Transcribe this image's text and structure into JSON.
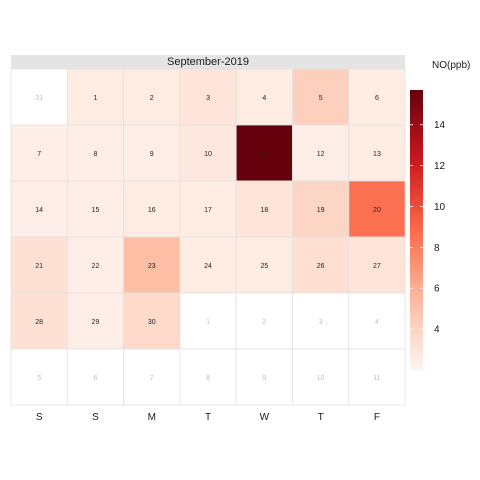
{
  "chart_data": {
    "type": "heatmap",
    "title": "",
    "panel_title": "September-2019",
    "legend_title": "NO(ppb)",
    "weekday_labels": [
      "S",
      "S",
      "M",
      "T",
      "W",
      "T",
      "F"
    ],
    "color_scale": {
      "low": "#fff5f0",
      "high": "#67000d",
      "min": 2,
      "max": 15.7,
      "ticks": [
        4,
        6,
        8,
        10,
        12,
        14
      ]
    },
    "grid": [
      [
        {
          "day": 31,
          "in_month": false,
          "value": null
        },
        {
          "day": 1,
          "in_month": true,
          "value": 2.6
        },
        {
          "day": 2,
          "in_month": true,
          "value": 2.6
        },
        {
          "day": 3,
          "in_month": true,
          "value": 3.0
        },
        {
          "day": 4,
          "in_month": true,
          "value": 2.6
        },
        {
          "day": 5,
          "in_month": true,
          "value": 4.2
        },
        {
          "day": 6,
          "in_month": true,
          "value": 2.5
        }
      ],
      [
        {
          "day": 7,
          "in_month": true,
          "value": 2.4
        },
        {
          "day": 8,
          "in_month": true,
          "value": 2.4
        },
        {
          "day": 9,
          "in_month": true,
          "value": 2.4
        },
        {
          "day": 10,
          "in_month": true,
          "value": 2.8
        },
        {
          "day": 11,
          "in_month": true,
          "value": 15.7
        },
        {
          "day": 12,
          "in_month": true,
          "value": 2.4
        },
        {
          "day": 13,
          "in_month": true,
          "value": 2.6
        }
      ],
      [
        {
          "day": 14,
          "in_month": true,
          "value": 2.4
        },
        {
          "day": 15,
          "in_month": true,
          "value": 2.4
        },
        {
          "day": 16,
          "in_month": true,
          "value": 2.6
        },
        {
          "day": 17,
          "in_month": true,
          "value": 2.5
        },
        {
          "day": 18,
          "in_month": true,
          "value": 3.0
        },
        {
          "day": 19,
          "in_month": true,
          "value": 3.9
        },
        {
          "day": 20,
          "in_month": true,
          "value": 8.6
        }
      ],
      [
        {
          "day": 21,
          "in_month": true,
          "value": 3.2
        },
        {
          "day": 22,
          "in_month": true,
          "value": 2.4
        },
        {
          "day": 23,
          "in_month": true,
          "value": 5.2
        },
        {
          "day": 24,
          "in_month": true,
          "value": 2.5
        },
        {
          "day": 25,
          "in_month": true,
          "value": 2.6
        },
        {
          "day": 26,
          "in_month": true,
          "value": 3.3
        },
        {
          "day": 27,
          "in_month": true,
          "value": 3.0
        }
      ],
      [
        {
          "day": 28,
          "in_month": true,
          "value": 3.2
        },
        {
          "day": 29,
          "in_month": true,
          "value": 2.4
        },
        {
          "day": 30,
          "in_month": true,
          "value": 3.6
        },
        {
          "day": 1,
          "in_month": false,
          "value": null
        },
        {
          "day": 2,
          "in_month": false,
          "value": null
        },
        {
          "day": 3,
          "in_month": false,
          "value": null
        },
        {
          "day": 4,
          "in_month": false,
          "value": null
        }
      ],
      [
        {
          "day": 5,
          "in_month": false,
          "value": null
        },
        {
          "day": 6,
          "in_month": false,
          "value": null
        },
        {
          "day": 7,
          "in_month": false,
          "value": null
        },
        {
          "day": 8,
          "in_month": false,
          "value": null
        },
        {
          "day": 9,
          "in_month": false,
          "value": null
        },
        {
          "day": 10,
          "in_month": false,
          "value": null
        },
        {
          "day": 11,
          "in_month": false,
          "value": null
        }
      ]
    ]
  }
}
